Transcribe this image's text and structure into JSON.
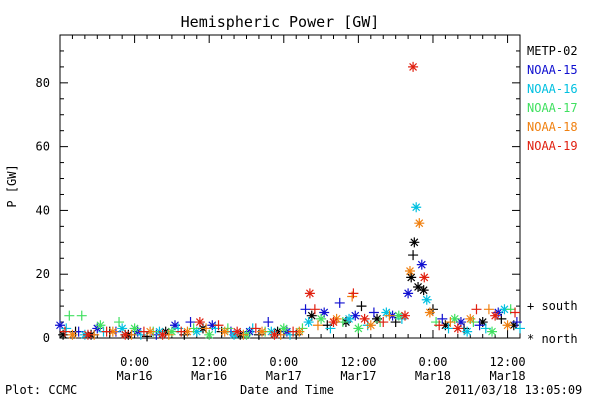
{
  "chart_data": {
    "type": "scatter",
    "title": "Hemispheric Power [GW]",
    "ylabel": "P [GW]",
    "xlabel": "Date and Time",
    "ylim": [
      0,
      95
    ],
    "xlim_hours_label": "time from 2011/03/15 12:00 to 2011/03/18 14:00",
    "x_ticks": [
      {
        "hour": 12,
        "time": "0:00",
        "date": "Mar16"
      },
      {
        "hour": 24,
        "time": "12:00",
        "date": "Mar16"
      },
      {
        "hour": 36,
        "time": "0:00",
        "date": "Mar17"
      },
      {
        "hour": 48,
        "time": "12:00",
        "date": "Mar17"
      },
      {
        "hour": 60,
        "time": "0:00",
        "date": "Mar18"
      },
      {
        "hour": 72,
        "time": "12:00",
        "date": "Mar18"
      }
    ],
    "y_ticks": [
      0,
      20,
      40,
      60,
      80
    ],
    "x_range_hours": [
      0,
      74
    ],
    "legend_markers": [
      {
        "symbol": "+",
        "label": "south"
      },
      {
        "symbol": "*",
        "label": "north"
      }
    ],
    "series": [
      {
        "name": "METP-02",
        "color": "#000000",
        "points": [
          {
            "h": 0.5,
            "v": 1,
            "m": "*"
          },
          {
            "h": 2.5,
            "v": 2,
            "m": "+"
          },
          {
            "h": 5,
            "v": 1,
            "m": "*"
          },
          {
            "h": 8,
            "v": 2,
            "m": "+"
          },
          {
            "h": 11,
            "v": 1,
            "m": "*"
          },
          {
            "h": 14,
            "v": 0.5,
            "m": "+"
          },
          {
            "h": 17,
            "v": 2,
            "m": "*"
          },
          {
            "h": 20,
            "v": 1,
            "m": "+"
          },
          {
            "h": 23,
            "v": 3,
            "m": "*"
          },
          {
            "h": 26,
            "v": 2,
            "m": "+"
          },
          {
            "h": 29,
            "v": 1,
            "m": "*"
          },
          {
            "h": 32,
            "v": 1,
            "m": "+"
          },
          {
            "h": 35,
            "v": 2,
            "m": "*"
          },
          {
            "h": 38,
            "v": 1,
            "m": "+"
          },
          {
            "h": 40.5,
            "v": 7,
            "m": "*"
          },
          {
            "h": 43,
            "v": 4,
            "m": "+"
          },
          {
            "h": 46,
            "v": 5,
            "m": "*"
          },
          {
            "h": 48.5,
            "v": 10,
            "m": "+"
          },
          {
            "h": 51,
            "v": 6,
            "m": "*"
          },
          {
            "h": 54,
            "v": 5,
            "m": "+"
          },
          {
            "h": 56.5,
            "v": 19,
            "m": "*"
          },
          {
            "h": 56.8,
            "v": 26,
            "m": "+"
          },
          {
            "h": 57,
            "v": 30,
            "m": "*"
          },
          {
            "h": 57.6,
            "v": 16,
            "m": "*"
          },
          {
            "h": 58.5,
            "v": 15,
            "m": "*"
          },
          {
            "h": 60,
            "v": 9,
            "m": "+"
          },
          {
            "h": 62,
            "v": 4,
            "m": "*"
          },
          {
            "h": 65,
            "v": 3,
            "m": "+"
          },
          {
            "h": 68,
            "v": 5,
            "m": "*"
          },
          {
            "h": 71,
            "v": 6,
            "m": "+"
          },
          {
            "h": 73,
            "v": 4,
            "m": "*"
          }
        ]
      },
      {
        "name": "NOAA-15",
        "color": "#1010d0",
        "points": [
          {
            "h": 0,
            "v": 4,
            "m": "*"
          },
          {
            "h": 3,
            "v": 2,
            "m": "+"
          },
          {
            "h": 6,
            "v": 3,
            "m": "*"
          },
          {
            "h": 9,
            "v": 2,
            "m": "+"
          },
          {
            "h": 12.5,
            "v": 2,
            "m": "*"
          },
          {
            "h": 15.5,
            "v": 1,
            "m": "+"
          },
          {
            "h": 18.5,
            "v": 4,
            "m": "*"
          },
          {
            "h": 21,
            "v": 5,
            "m": "+"
          },
          {
            "h": 24.5,
            "v": 4,
            "m": "*"
          },
          {
            "h": 27.5,
            "v": 2,
            "m": "+"
          },
          {
            "h": 30.5,
            "v": 2,
            "m": "*"
          },
          {
            "h": 33.5,
            "v": 5,
            "m": "+"
          },
          {
            "h": 36.5,
            "v": 2,
            "m": "*"
          },
          {
            "h": 39.5,
            "v": 9,
            "m": "+"
          },
          {
            "h": 42.5,
            "v": 8,
            "m": "*"
          },
          {
            "h": 45,
            "v": 11,
            "m": "+"
          },
          {
            "h": 47.5,
            "v": 7,
            "m": "*"
          },
          {
            "h": 50.5,
            "v": 8,
            "m": "+"
          },
          {
            "h": 53.5,
            "v": 7,
            "m": "*"
          },
          {
            "h": 56,
            "v": 14,
            "m": "*"
          },
          {
            "h": 58.2,
            "v": 23,
            "m": "*"
          },
          {
            "h": 61.5,
            "v": 6,
            "m": "+"
          },
          {
            "h": 64.5,
            "v": 5,
            "m": "*"
          },
          {
            "h": 67.5,
            "v": 4,
            "m": "+"
          },
          {
            "h": 70.5,
            "v": 8,
            "m": "*"
          },
          {
            "h": 73.5,
            "v": 5,
            "m": "+"
          }
        ]
      },
      {
        "name": "NOAA-16",
        "color": "#00c0e0",
        "points": [
          {
            "h": 1,
            "v": 3,
            "m": "+"
          },
          {
            "h": 4,
            "v": 1,
            "m": "*"
          },
          {
            "h": 7,
            "v": 2,
            "m": "+"
          },
          {
            "h": 10,
            "v": 3,
            "m": "*"
          },
          {
            "h": 13,
            "v": 1,
            "m": "+"
          },
          {
            "h": 16,
            "v": 2,
            "m": "*"
          },
          {
            "h": 19,
            "v": 3,
            "m": "+"
          },
          {
            "h": 22,
            "v": 2,
            "m": "*"
          },
          {
            "h": 25,
            "v": 3,
            "m": "+"
          },
          {
            "h": 28,
            "v": 1,
            "m": "*"
          },
          {
            "h": 31,
            "v": 3,
            "m": "+"
          },
          {
            "h": 34,
            "v": 2,
            "m": "*"
          },
          {
            "h": 37,
            "v": 1,
            "m": "+"
          },
          {
            "h": 40,
            "v": 5,
            "m": "*"
          },
          {
            "h": 43.5,
            "v": 3,
            "m": "+"
          },
          {
            "h": 46.5,
            "v": 6,
            "m": "*"
          },
          {
            "h": 49.5,
            "v": 4,
            "m": "+"
          },
          {
            "h": 52.5,
            "v": 8,
            "m": "*"
          },
          {
            "h": 55,
            "v": 6,
            "m": "+"
          },
          {
            "h": 57.3,
            "v": 41,
            "m": "*"
          },
          {
            "h": 59,
            "v": 12,
            "m": "*"
          },
          {
            "h": 62.5,
            "v": 3,
            "m": "+"
          },
          {
            "h": 65.5,
            "v": 2,
            "m": "*"
          },
          {
            "h": 68.5,
            "v": 3,
            "m": "+"
          },
          {
            "h": 71.5,
            "v": 9,
            "m": "*"
          },
          {
            "h": 74,
            "v": 3,
            "m": "+"
          }
        ]
      },
      {
        "name": "NOAA-17",
        "color": "#40e060",
        "points": [
          {
            "h": 1.5,
            "v": 7,
            "m": "+"
          },
          {
            "h": 3.5,
            "v": 7,
            "m": "+"
          },
          {
            "h": 6.5,
            "v": 4,
            "m": "*"
          },
          {
            "h": 9.5,
            "v": 5,
            "m": "+"
          },
          {
            "h": 12,
            "v": 3,
            "m": "*"
          },
          {
            "h": 15,
            "v": 2,
            "m": "+"
          },
          {
            "h": 18,
            "v": 2,
            "m": "*"
          },
          {
            "h": 21.5,
            "v": 3,
            "m": "+"
          },
          {
            "h": 24,
            "v": 1,
            "m": "*"
          },
          {
            "h": 27,
            "v": 3,
            "m": "+"
          },
          {
            "h": 30,
            "v": 1,
            "m": "*"
          },
          {
            "h": 33,
            "v": 2,
            "m": "+"
          },
          {
            "h": 36,
            "v": 3,
            "m": "*"
          },
          {
            "h": 39,
            "v": 3,
            "m": "+"
          },
          {
            "h": 42,
            "v": 6,
            "m": "*"
          },
          {
            "h": 45.5,
            "v": 5,
            "m": "+"
          },
          {
            "h": 48,
            "v": 3,
            "m": "*"
          },
          {
            "h": 51.5,
            "v": 5,
            "m": "+"
          },
          {
            "h": 54.5,
            "v": 7,
            "m": "*"
          },
          {
            "h": 60.5,
            "v": 5,
            "m": "+"
          },
          {
            "h": 63.5,
            "v": 6,
            "m": "*"
          },
          {
            "h": 66.5,
            "v": 5,
            "m": "+"
          },
          {
            "h": 69.5,
            "v": 2,
            "m": "*"
          },
          {
            "h": 72.5,
            "v": 9,
            "m": "+"
          }
        ]
      },
      {
        "name": "NOAA-18",
        "color": "#f08010",
        "points": [
          {
            "h": 2,
            "v": 1,
            "m": "*"
          },
          {
            "h": 5.5,
            "v": 1,
            "m": "+"
          },
          {
            "h": 8.5,
            "v": 2,
            "m": "*"
          },
          {
            "h": 11.5,
            "v": 1,
            "m": "+"
          },
          {
            "h": 14.5,
            "v": 2,
            "m": "*"
          },
          {
            "h": 17.5,
            "v": 1,
            "m": "+"
          },
          {
            "h": 20.5,
            "v": 2,
            "m": "*"
          },
          {
            "h": 23.5,
            "v": 3,
            "m": "+"
          },
          {
            "h": 26.5,
            "v": 2,
            "m": "*"
          },
          {
            "h": 29.5,
            "v": 1,
            "m": "+"
          },
          {
            "h": 32.5,
            "v": 2,
            "m": "*"
          },
          {
            "h": 35.5,
            "v": 1,
            "m": "+"
          },
          {
            "h": 38.5,
            "v": 2,
            "m": "*"
          },
          {
            "h": 41.5,
            "v": 4,
            "m": "+"
          },
          {
            "h": 44.5,
            "v": 6,
            "m": "*"
          },
          {
            "h": 47,
            "v": 13,
            "m": "+"
          },
          {
            "h": 50,
            "v": 4,
            "m": "*"
          },
          {
            "h": 53,
            "v": 7,
            "m": "+"
          },
          {
            "h": 56.3,
            "v": 21,
            "m": "*"
          },
          {
            "h": 57.8,
            "v": 36,
            "m": "*"
          },
          {
            "h": 59.5,
            "v": 8,
            "m": "*"
          },
          {
            "h": 62.8,
            "v": 5,
            "m": "+"
          },
          {
            "h": 66,
            "v": 6,
            "m": "*"
          },
          {
            "h": 69,
            "v": 9,
            "m": "+"
          },
          {
            "h": 72,
            "v": 4,
            "m": "*"
          }
        ]
      },
      {
        "name": "NOAA-19",
        "color": "#e02010",
        "points": [
          {
            "h": 0.8,
            "v": 2,
            "m": "+"
          },
          {
            "h": 4.5,
            "v": 1,
            "m": "*"
          },
          {
            "h": 7.5,
            "v": 2,
            "m": "+"
          },
          {
            "h": 10.5,
            "v": 1,
            "m": "*"
          },
          {
            "h": 13.5,
            "v": 2,
            "m": "+"
          },
          {
            "h": 16.5,
            "v": 1,
            "m": "*"
          },
          {
            "h": 19.5,
            "v": 2,
            "m": "+"
          },
          {
            "h": 22.5,
            "v": 5,
            "m": "*"
          },
          {
            "h": 25.5,
            "v": 4,
            "m": "+"
          },
          {
            "h": 28.5,
            "v": 2,
            "m": "*"
          },
          {
            "h": 31.5,
            "v": 3,
            "m": "+"
          },
          {
            "h": 34.5,
            "v": 1,
            "m": "*"
          },
          {
            "h": 37.5,
            "v": 2,
            "m": "+"
          },
          {
            "h": 40.2,
            "v": 14,
            "m": "*"
          },
          {
            "h": 41,
            "v": 9,
            "m": "+"
          },
          {
            "h": 44,
            "v": 5,
            "m": "*"
          },
          {
            "h": 47.2,
            "v": 14,
            "m": "+"
          },
          {
            "h": 49,
            "v": 6,
            "m": "*"
          },
          {
            "h": 52,
            "v": 5,
            "m": "+"
          },
          {
            "h": 55.5,
            "v": 7,
            "m": "*"
          },
          {
            "h": 56.8,
            "v": 85,
            "m": "*"
          },
          {
            "h": 58.6,
            "v": 19,
            "m": "*"
          },
          {
            "h": 61,
            "v": 4,
            "m": "+"
          },
          {
            "h": 64,
            "v": 3,
            "m": "*"
          },
          {
            "h": 67,
            "v": 9,
            "m": "+"
          },
          {
            "h": 70,
            "v": 7,
            "m": "*"
          },
          {
            "h": 73.2,
            "v": 8,
            "m": "+"
          }
        ]
      }
    ]
  },
  "footer": {
    "left": "Plot: CCMC",
    "right": "2011/03/18 13:05:09"
  }
}
